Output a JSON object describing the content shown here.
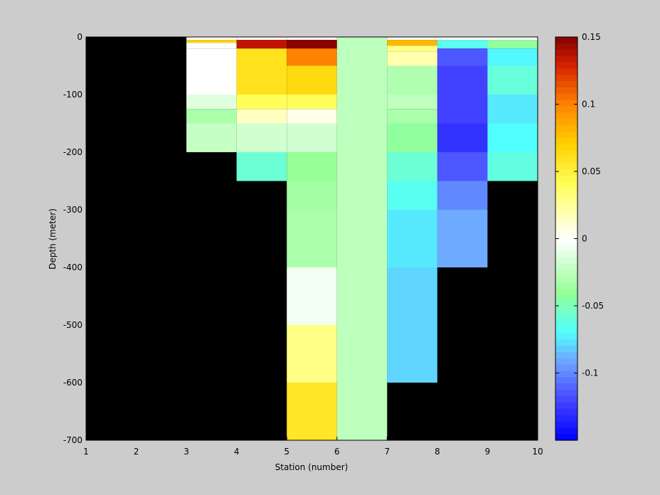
{
  "chart_data": {
    "type": "heatmap",
    "xlabel": "Station (number)",
    "ylabel": "Depth (meter)",
    "xlim": [
      1,
      10
    ],
    "ylim": [
      -700,
      0
    ],
    "x_ticks": [
      "1",
      "2",
      "3",
      "4",
      "5",
      "6",
      "7",
      "8",
      "9",
      "10"
    ],
    "y_ticks": [
      "0",
      "-100",
      "-200",
      "-300",
      "-400",
      "-500",
      "-600",
      "-700"
    ],
    "colorbar": {
      "range": [
        -0.15,
        0.15
      ],
      "ticks": [
        "0.15",
        "0.1",
        "0.05",
        "0",
        "-0.05",
        "-0.1"
      ],
      "colormap": "jet-white-center"
    },
    "background_color": "#000000",
    "cells": [
      {
        "x0": 3,
        "x1": 4,
        "y0": 0,
        "y1": -5,
        "value": 0.0
      },
      {
        "x0": 3,
        "x1": 4,
        "y0": -5,
        "y1": -10,
        "value": 0.07
      },
      {
        "x0": 3,
        "x1": 4,
        "y0": -10,
        "y1": -20,
        "value": 0.0
      },
      {
        "x0": 3,
        "x1": 4,
        "y0": -20,
        "y1": -100,
        "value": 0.0
      },
      {
        "x0": 3,
        "x1": 4,
        "y0": -100,
        "y1": -125,
        "value": -0.012
      },
      {
        "x0": 3,
        "x1": 4,
        "y0": -125,
        "y1": -150,
        "value": -0.032
      },
      {
        "x0": 3,
        "x1": 4,
        "y0": -150,
        "y1": -200,
        "value": -0.022
      },
      {
        "x0": 4,
        "x1": 5,
        "y0": 0,
        "y1": -5,
        "value": 0.0
      },
      {
        "x0": 4,
        "x1": 5,
        "y0": -5,
        "y1": -20,
        "value": 0.135
      },
      {
        "x0": 4,
        "x1": 5,
        "y0": -20,
        "y1": -100,
        "value": 0.06
      },
      {
        "x0": 4,
        "x1": 5,
        "y0": -100,
        "y1": -125,
        "value": 0.04
      },
      {
        "x0": 4,
        "x1": 5,
        "y0": -125,
        "y1": -150,
        "value": 0.015
      },
      {
        "x0": 4,
        "x1": 5,
        "y0": -150,
        "y1": -200,
        "value": -0.018
      },
      {
        "x0": 4,
        "x1": 5,
        "y0": -200,
        "y1": -250,
        "value": -0.058
      },
      {
        "x0": 5,
        "x1": 6,
        "y0": 0,
        "y1": -5,
        "value": 0.0
      },
      {
        "x0": 5,
        "x1": 6,
        "y0": -5,
        "y1": -20,
        "value": 0.148
      },
      {
        "x0": 5,
        "x1": 6,
        "y0": -20,
        "y1": -50,
        "value": 0.1
      },
      {
        "x0": 5,
        "x1": 6,
        "y0": -50,
        "y1": -100,
        "value": 0.065
      },
      {
        "x0": 5,
        "x1": 6,
        "y0": -100,
        "y1": -125,
        "value": 0.04
      },
      {
        "x0": 5,
        "x1": 6,
        "y0": -125,
        "y1": -150,
        "value": 0.005
      },
      {
        "x0": 5,
        "x1": 6,
        "y0": -150,
        "y1": -200,
        "value": -0.018
      },
      {
        "x0": 5,
        "x1": 6,
        "y0": -200,
        "y1": -250,
        "value": -0.04
      },
      {
        "x0": 5,
        "x1": 6,
        "y0": -250,
        "y1": -300,
        "value": -0.035
      },
      {
        "x0": 5,
        "x1": 6,
        "y0": -300,
        "y1": -400,
        "value": -0.032
      },
      {
        "x0": 5,
        "x1": 6,
        "y0": -400,
        "y1": -500,
        "value": -0.005
      },
      {
        "x0": 5,
        "x1": 6,
        "y0": -500,
        "y1": -600,
        "value": 0.03
      },
      {
        "x0": 5,
        "x1": 6,
        "y0": -600,
        "y1": -700,
        "value": 0.057
      },
      {
        "x0": 6,
        "x1": 7,
        "y0": 0,
        "y1": -700,
        "value": -0.025
      },
      {
        "x0": 7,
        "x1": 8,
        "y0": 0,
        "y1": -5,
        "value": 0.0
      },
      {
        "x0": 7,
        "x1": 8,
        "y0": -5,
        "y1": -15,
        "value": 0.08
      },
      {
        "x0": 7,
        "x1": 8,
        "y0": -15,
        "y1": -25,
        "value": 0.03
      },
      {
        "x0": 7,
        "x1": 8,
        "y0": -25,
        "y1": -50,
        "value": 0.02
      },
      {
        "x0": 7,
        "x1": 8,
        "y0": -50,
        "y1": -100,
        "value": -0.03
      },
      {
        "x0": 7,
        "x1": 8,
        "y0": -100,
        "y1": -125,
        "value": -0.024
      },
      {
        "x0": 7,
        "x1": 8,
        "y0": -125,
        "y1": -150,
        "value": -0.032
      },
      {
        "x0": 7,
        "x1": 8,
        "y0": -150,
        "y1": -200,
        "value": -0.042
      },
      {
        "x0": 7,
        "x1": 8,
        "y0": -200,
        "y1": -250,
        "value": -0.058
      },
      {
        "x0": 7,
        "x1": 8,
        "y0": -250,
        "y1": -300,
        "value": -0.066
      },
      {
        "x0": 7,
        "x1": 8,
        "y0": -300,
        "y1": -400,
        "value": -0.075
      },
      {
        "x0": 7,
        "x1": 8,
        "y0": -400,
        "y1": -600,
        "value": -0.08
      },
      {
        "x0": 8,
        "x1": 9,
        "y0": 0,
        "y1": -5,
        "value": 0.0
      },
      {
        "x0": 8,
        "x1": 9,
        "y0": -5,
        "y1": -20,
        "value": -0.065
      },
      {
        "x0": 8,
        "x1": 9,
        "y0": -20,
        "y1": -50,
        "value": -0.115
      },
      {
        "x0": 8,
        "x1": 9,
        "y0": -50,
        "y1": -150,
        "value": -0.122
      },
      {
        "x0": 8,
        "x1": 9,
        "y0": -150,
        "y1": -200,
        "value": -0.128
      },
      {
        "x0": 8,
        "x1": 9,
        "y0": -200,
        "y1": -250,
        "value": -0.115
      },
      {
        "x0": 8,
        "x1": 9,
        "y0": -250,
        "y1": -300,
        "value": -0.1
      },
      {
        "x0": 8,
        "x1": 9,
        "y0": -300,
        "y1": -400,
        "value": -0.09
      },
      {
        "x0": 9,
        "x1": 10,
        "y0": 0,
        "y1": -5,
        "value": 0.0
      },
      {
        "x0": 9,
        "x1": 10,
        "y0": -5,
        "y1": -20,
        "value": -0.042
      },
      {
        "x0": 9,
        "x1": 10,
        "y0": -20,
        "y1": -50,
        "value": -0.072
      },
      {
        "x0": 9,
        "x1": 10,
        "y0": -50,
        "y1": -100,
        "value": -0.06
      },
      {
        "x0": 9,
        "x1": 10,
        "y0": -100,
        "y1": -150,
        "value": -0.075
      },
      {
        "x0": 9,
        "x1": 10,
        "y0": -150,
        "y1": -200,
        "value": -0.07
      },
      {
        "x0": 9,
        "x1": 10,
        "y0": -200,
        "y1": -250,
        "value": -0.062
      }
    ]
  }
}
